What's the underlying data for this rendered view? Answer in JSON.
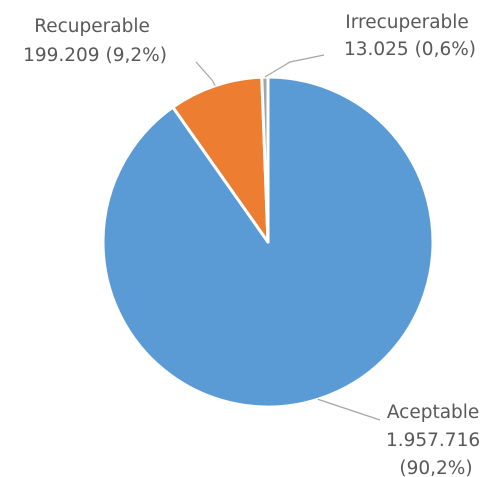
{
  "chart_data": {
    "type": "pie",
    "title": "",
    "start_angle_deg": 0,
    "direction": "clockwise",
    "slices": [
      {
        "name": "Aceptable",
        "value": 1957716,
        "value_label": "1.957.716",
        "percent_label": "(90,2%)",
        "color": "#5b9bd5"
      },
      {
        "name": "Recuperable",
        "value": 199209,
        "value_label": "199.209",
        "percent_label": "(9,2%)",
        "color": "#ed7d31"
      },
      {
        "name": "Irrecuperable",
        "value": 13025,
        "value_label": "13.025",
        "percent_label": "(0,6%)",
        "color": "#a5a5a5"
      }
    ]
  },
  "colors": {
    "leader_line": "#a6a6a6",
    "slice_border": "#ffffff",
    "label_text": "#595959"
  }
}
